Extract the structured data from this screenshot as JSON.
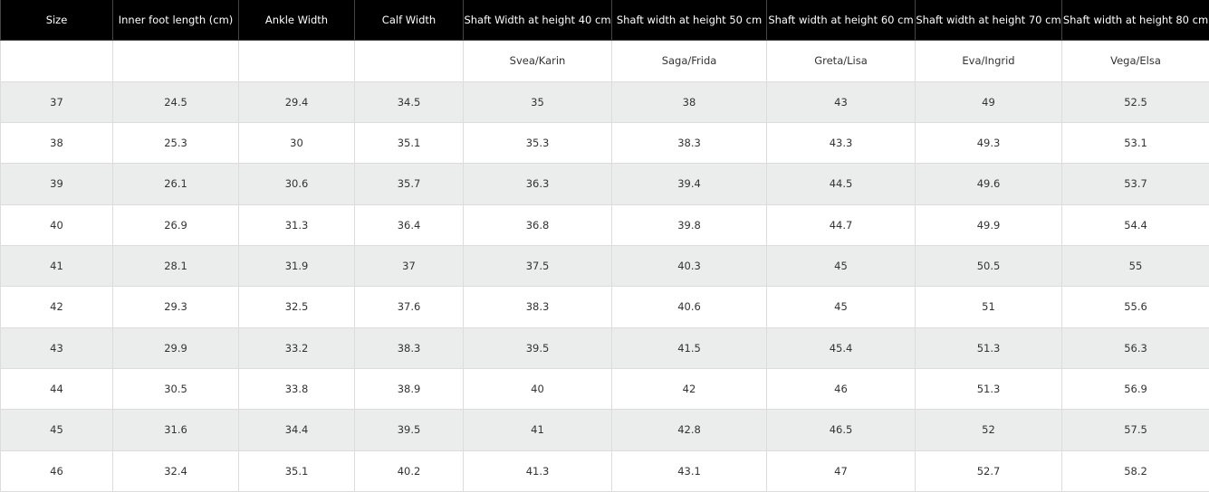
{
  "table": {
    "header": [
      "Size",
      "Inner foot length (cm)",
      "Ankle Width",
      "Calf Width",
      "Shaft Width at height 40 cm",
      "Shaft width at height 50 cm",
      "Shaft width at height 60 cm",
      "Shaft width at height 70 cm",
      "Shaft width at height 80 cm"
    ],
    "models": [
      "Svea/Karin",
      "Saga/Frida",
      "Greta/Lisa",
      "Eva/Ingrid",
      "Vega/Elsa"
    ],
    "rows": [
      [
        37,
        24.5,
        29.4,
        34.5,
        35,
        38,
        43,
        49,
        52.5
      ],
      [
        38,
        25.3,
        30,
        35.1,
        35.3,
        38.3,
        43.3,
        49.3,
        53.1
      ],
      [
        39,
        26.1,
        30.6,
        35.7,
        36.3,
        39.4,
        44.5,
        49.6,
        53.7
      ],
      [
        40,
        26.9,
        31.3,
        36.4,
        36.8,
        39.8,
        44.7,
        49.9,
        54.4
      ],
      [
        41,
        28.1,
        31.9,
        37,
        37.5,
        40.3,
        45,
        50.5,
        55
      ],
      [
        42,
        29.3,
        32.5,
        37.6,
        38.3,
        40.6,
        45,
        51,
        55.6
      ],
      [
        43,
        29.9,
        33.2,
        38.3,
        39.5,
        41.5,
        45.4,
        51.3,
        56.3
      ],
      [
        44,
        30.5,
        33.8,
        38.9,
        40,
        42,
        46,
        51.3,
        56.9
      ],
      [
        45,
        31.6,
        34.4,
        39.5,
        41,
        42.8,
        46.5,
        52,
        57.5
      ],
      [
        46,
        32.4,
        35.1,
        40.2,
        41.3,
        43.1,
        47,
        52.7,
        58.2
      ]
    ]
  }
}
